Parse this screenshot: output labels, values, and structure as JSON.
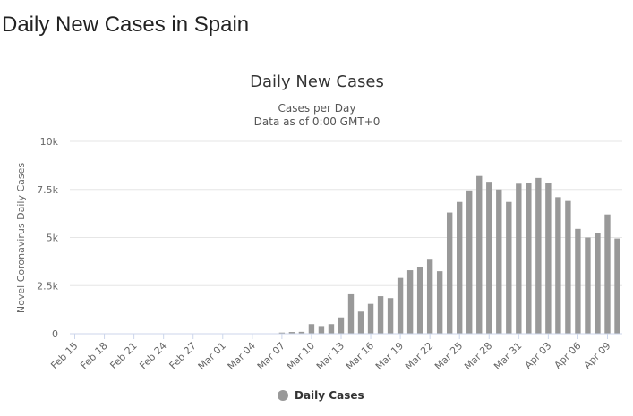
{
  "page": {
    "title": "Daily New Cases in Spain"
  },
  "chart_data": {
    "type": "bar",
    "title": "Daily New Cases",
    "subtitle": [
      "Cases per Day",
      "Data as of 0:00 GMT+0"
    ],
    "xlabel": "",
    "ylabel": "Novel Coronavirus Daily Cases",
    "ylim": [
      0,
      10000
    ],
    "yticks": [
      0,
      2500,
      5000,
      7500,
      10000
    ],
    "ytick_labels": [
      "0",
      "2.5k",
      "5k",
      "7.5k",
      "10k"
    ],
    "grid": true,
    "legend_position": "bottom-center",
    "bar_color": "#999999",
    "categories": [
      "Feb 15",
      "Feb 16",
      "Feb 17",
      "Feb 18",
      "Feb 19",
      "Feb 20",
      "Feb 21",
      "Feb 22",
      "Feb 23",
      "Feb 24",
      "Feb 25",
      "Feb 26",
      "Feb 27",
      "Feb 28",
      "Feb 29",
      "Mar 01",
      "Mar 02",
      "Mar 03",
      "Mar 04",
      "Mar 05",
      "Mar 06",
      "Mar 07",
      "Mar 08",
      "Mar 09",
      "Mar 10",
      "Mar 11",
      "Mar 12",
      "Mar 13",
      "Mar 14",
      "Mar 15",
      "Mar 16",
      "Mar 17",
      "Mar 18",
      "Mar 19",
      "Mar 20",
      "Mar 21",
      "Mar 22",
      "Mar 23",
      "Mar 24",
      "Mar 25",
      "Mar 26",
      "Mar 27",
      "Mar 28",
      "Mar 29",
      "Mar 30",
      "Mar 31",
      "Apr 01",
      "Apr 02",
      "Apr 03",
      "Apr 04",
      "Apr 05",
      "Apr 06",
      "Apr 07",
      "Apr 08",
      "Apr 09",
      "Apr 10"
    ],
    "xtick_labels": [
      "Feb 15",
      "Feb 18",
      "Feb 21",
      "Feb 24",
      "Feb 27",
      "Mar 01",
      "Mar 04",
      "Mar 07",
      "Mar 10",
      "Mar 13",
      "Mar 16",
      "Mar 19",
      "Mar 22",
      "Mar 25",
      "Mar 28",
      "Mar 31",
      "Apr 03",
      "Apr 06",
      "Apr 09"
    ],
    "series": [
      {
        "name": "Daily Cases",
        "values": [
          0,
          0,
          0,
          0,
          0,
          0,
          0,
          0,
          0,
          0,
          0,
          0,
          0,
          0,
          0,
          0,
          0,
          0,
          0,
          0,
          0,
          60,
          90,
          100,
          500,
          400,
          500,
          850,
          2050,
          1150,
          1550,
          1950,
          1850,
          2900,
          3300,
          3450,
          3850,
          3250,
          6300,
          6850,
          7450,
          8200,
          7900,
          7500,
          6850,
          7800,
          7850,
          8100,
          7850,
          7100,
          6900,
          5450,
          5000,
          5250,
          6200,
          4950
        ]
      }
    ]
  }
}
